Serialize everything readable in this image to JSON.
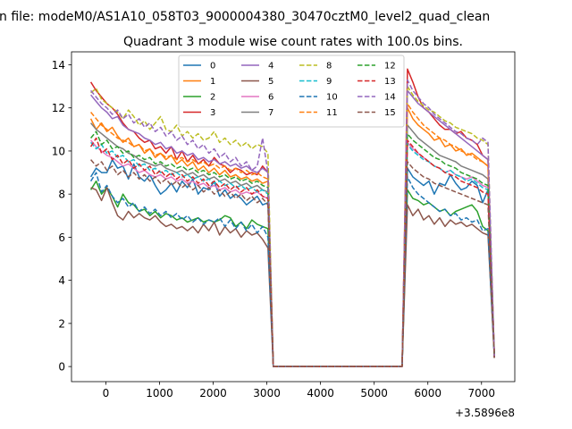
{
  "chart_data": {
    "type": "line",
    "suptitle": "n file: modeM0/AS1A10_058T03_9000004380_30470cztM0_level2_quad_clean",
    "title": "Quadrant 3 module wise count rates with 100.0s bins.",
    "xlabel": "",
    "ylabel": "",
    "x_offset_label": "+3.5896e8",
    "xlim": [
      -640,
      7620
    ],
    "ylim": [
      -0.7,
      14.6
    ],
    "xticks": [
      0,
      1000,
      2000,
      3000,
      4000,
      5000,
      6000,
      7000
    ],
    "yticks": [
      0,
      2,
      4,
      6,
      8,
      10,
      12,
      14
    ],
    "grid": false,
    "legend": {
      "placement": "top-center",
      "columns": 4
    },
    "x": [
      -280,
      -180,
      -80,
      20,
      120,
      220,
      320,
      420,
      520,
      620,
      720,
      820,
      920,
      1020,
      1120,
      1220,
      1320,
      1420,
      1520,
      1620,
      1720,
      1820,
      1920,
      2020,
      2120,
      2220,
      2320,
      2420,
      2520,
      2620,
      2720,
      2820,
      2920,
      3020,
      3120,
      5420,
      5520,
      5620,
      5720,
      5820,
      5920,
      6020,
      6120,
      6220,
      6320,
      6420,
      6520,
      6620,
      6720,
      6820,
      6920,
      7020,
      7120,
      7240
    ],
    "series": [
      {
        "name": "0",
        "color": "#1f77b4",
        "style": "solid",
        "values": [
          8.8,
          9.2,
          9.0,
          9.0,
          9.6,
          9.2,
          9.3,
          8.7,
          9.4,
          8.8,
          8.6,
          8.9,
          8.4,
          8.0,
          8.2,
          8.5,
          8.1,
          8.6,
          8.3,
          8.7,
          8.0,
          8.3,
          8.2,
          8.6,
          7.9,
          8.2,
          7.8,
          8.0,
          7.8,
          7.5,
          7.7,
          7.9,
          7.5,
          7.6,
          0.0,
          0.0,
          0.0,
          9.2,
          8.8,
          8.6,
          8.4,
          8.6,
          8.0,
          8.5,
          8.4,
          8.9,
          8.5,
          8.2,
          8.3,
          8.6,
          8.4,
          7.6,
          8.2,
          0.4
        ]
      },
      {
        "name": "1",
        "color": "#ff7f0e",
        "style": "solid",
        "values": [
          11.5,
          11.0,
          11.3,
          10.9,
          11.1,
          10.7,
          10.4,
          10.6,
          10.2,
          10.3,
          9.9,
          10.1,
          9.7,
          9.9,
          9.6,
          9.8,
          9.4,
          9.6,
          9.3,
          9.5,
          9.1,
          9.3,
          9.0,
          9.2,
          8.9,
          9.1,
          8.8,
          8.9,
          8.7,
          8.8,
          8.6,
          8.7,
          8.5,
          8.6,
          0.0,
          0.0,
          0.0,
          12.0,
          11.5,
          11.2,
          11.0,
          10.8,
          10.5,
          10.6,
          10.2,
          10.3,
          10.0,
          10.1,
          9.8,
          9.9,
          9.7,
          9.5,
          9.3,
          0.4
        ]
      },
      {
        "name": "2",
        "color": "#2ca02c",
        "style": "solid",
        "values": [
          8.2,
          8.6,
          8.0,
          8.3,
          7.9,
          7.4,
          8.0,
          7.6,
          7.5,
          7.2,
          7.3,
          7.0,
          7.2,
          6.9,
          7.1,
          7.0,
          6.8,
          6.9,
          6.7,
          6.8,
          6.9,
          6.7,
          6.8,
          6.7,
          6.8,
          7.0,
          6.9,
          6.5,
          6.7,
          6.4,
          6.8,
          6.6,
          6.5,
          6.4,
          0.0,
          0.0,
          0.0,
          8.2,
          7.8,
          7.7,
          7.5,
          7.6,
          7.4,
          7.2,
          7.3,
          7.0,
          7.2,
          7.3,
          7.4,
          7.5,
          7.2,
          6.5,
          6.3,
          0.4
        ]
      },
      {
        "name": "3",
        "color": "#d62728",
        "style": "solid",
        "values": [
          13.2,
          12.8,
          12.5,
          12.2,
          12.0,
          11.7,
          11.3,
          11.0,
          10.9,
          10.6,
          10.4,
          10.5,
          10.1,
          10.2,
          9.9,
          10.2,
          9.6,
          10.0,
          9.5,
          9.8,
          9.4,
          9.6,
          9.3,
          9.7,
          9.4,
          9.3,
          9.0,
          9.2,
          9.1,
          8.9,
          9.0,
          8.9,
          9.3,
          9.0,
          0.0,
          0.0,
          0.0,
          13.8,
          13.2,
          12.5,
          12.0,
          11.8,
          11.5,
          11.2,
          11.0,
          11.0,
          10.8,
          10.9,
          10.6,
          10.5,
          10.3,
          9.8,
          9.6,
          0.4
        ]
      },
      {
        "name": "4",
        "color": "#9467bd",
        "style": "solid",
        "values": [
          12.6,
          12.3,
          12.0,
          11.8,
          11.5,
          11.6,
          11.2,
          11.0,
          10.9,
          10.8,
          10.6,
          10.5,
          10.3,
          10.4,
          10.1,
          10.2,
          9.9,
          10.0,
          9.8,
          9.9,
          9.6,
          9.7,
          9.5,
          9.6,
          9.4,
          9.5,
          9.3,
          9.4,
          9.2,
          9.3,
          9.1,
          9.0,
          9.2,
          9.0,
          0.0,
          0.0,
          0.0,
          12.8,
          12.5,
          12.2,
          12.0,
          11.8,
          11.6,
          11.4,
          11.2,
          11.0,
          10.8,
          10.6,
          10.4,
          10.2,
          10.0,
          9.8,
          9.6,
          0.4
        ]
      },
      {
        "name": "5",
        "color": "#8c564b",
        "style": "solid",
        "values": [
          8.3,
          8.2,
          7.7,
          8.3,
          7.6,
          7.0,
          6.8,
          7.2,
          6.9,
          7.1,
          6.9,
          6.8,
          7.0,
          6.7,
          6.5,
          6.6,
          6.4,
          6.5,
          6.3,
          6.5,
          6.2,
          6.6,
          6.3,
          6.7,
          6.1,
          6.5,
          6.2,
          6.4,
          6.0,
          6.3,
          6.1,
          6.2,
          5.9,
          5.5,
          0.0,
          0.0,
          0.0,
          7.5,
          7.0,
          7.3,
          6.8,
          7.0,
          6.6,
          6.9,
          6.5,
          6.8,
          6.6,
          6.7,
          6.5,
          6.6,
          6.4,
          6.2,
          6.1,
          0.4
        ]
      },
      {
        "name": "6",
        "color": "#e377c2",
        "style": "solid",
        "values": [
          10.5,
          10.2,
          10.0,
          9.8,
          9.7,
          9.5,
          9.3,
          9.4,
          9.2,
          9.0,
          9.1,
          8.9,
          8.8,
          8.9,
          8.7,
          8.8,
          8.6,
          8.7,
          8.5,
          8.6,
          8.4,
          8.5,
          8.3,
          8.4,
          8.2,
          8.3,
          8.1,
          8.2,
          8.0,
          8.1,
          8.0,
          8.1,
          7.9,
          7.8,
          0.0,
          0.0,
          0.0,
          10.4,
          10.1,
          9.9,
          9.7,
          9.5,
          9.3,
          9.2,
          9.0,
          9.1,
          8.9,
          8.8,
          8.7,
          8.8,
          8.6,
          8.4,
          8.3,
          0.4
        ]
      },
      {
        "name": "7",
        "color": "#7f7f7f",
        "style": "solid",
        "values": [
          11.3,
          11.0,
          10.8,
          10.6,
          10.4,
          10.2,
          10.1,
          9.9,
          9.8,
          9.6,
          9.5,
          9.4,
          9.3,
          9.4,
          9.2,
          9.1,
          9.0,
          9.1,
          8.9,
          9.0,
          8.8,
          8.9,
          8.7,
          8.8,
          8.6,
          8.7,
          8.5,
          8.6,
          8.4,
          8.5,
          8.3,
          8.4,
          8.2,
          8.1,
          0.0,
          0.0,
          0.0,
          11.2,
          10.9,
          10.6,
          10.4,
          10.2,
          10.0,
          9.8,
          9.7,
          9.6,
          9.5,
          9.3,
          9.2,
          9.1,
          9.0,
          8.9,
          8.7,
          0.4
        ]
      },
      {
        "name": "8",
        "color": "#bcbd22",
        "style": "dashed",
        "values": [
          12.7,
          12.9,
          12.4,
          12.2,
          12.0,
          11.8,
          11.5,
          11.9,
          11.6,
          11.2,
          11.4,
          11.0,
          11.3,
          11.6,
          11.0,
          10.9,
          11.2,
          10.7,
          10.9,
          10.6,
          10.8,
          10.5,
          10.6,
          10.9,
          10.4,
          10.6,
          10.3,
          10.5,
          10.2,
          10.4,
          10.1,
          10.3,
          10.2,
          9.9,
          0.0,
          0.0,
          0.0,
          13.0,
          12.6,
          12.3,
          12.1,
          11.9,
          11.8,
          11.6,
          11.4,
          11.3,
          11.1,
          11.0,
          10.9,
          10.8,
          10.6,
          10.5,
          10.3,
          0.4
        ]
      },
      {
        "name": "9",
        "color": "#17becf",
        "style": "dashed",
        "values": [
          10.4,
          10.1,
          10.3,
          9.9,
          10.0,
          9.7,
          9.8,
          9.5,
          9.6,
          9.3,
          9.4,
          9.1,
          9.2,
          9.0,
          9.1,
          8.9,
          9.0,
          8.8,
          8.9,
          8.7,
          8.8,
          8.6,
          8.7,
          8.5,
          8.6,
          8.4,
          8.5,
          8.3,
          8.4,
          8.2,
          8.3,
          8.1,
          8.2,
          8.0,
          0.0,
          0.0,
          0.0,
          10.3,
          10.0,
          9.8,
          9.6,
          9.5,
          9.3,
          9.2,
          9.0,
          9.1,
          8.9,
          8.8,
          8.6,
          8.7,
          8.5,
          8.3,
          8.2,
          0.4
        ]
      },
      {
        "name": "10",
        "color": "#1f77b4",
        "style": "dashed",
        "values": [
          8.6,
          9.0,
          8.1,
          8.4,
          7.9,
          7.6,
          7.8,
          7.4,
          7.6,
          7.2,
          7.4,
          7.1,
          7.3,
          7.0,
          7.2,
          6.9,
          7.1,
          6.8,
          7.0,
          6.7,
          6.9,
          6.6,
          6.8,
          6.7,
          6.9,
          6.5,
          6.8,
          6.4,
          6.7,
          6.3,
          6.6,
          6.2,
          6.5,
          6.0,
          0.0,
          0.0,
          0.0,
          8.8,
          8.3,
          8.0,
          7.8,
          7.6,
          7.4,
          7.2,
          7.3,
          7.0,
          7.1,
          6.8,
          6.9,
          6.7,
          6.8,
          6.3,
          6.4,
          0.4
        ]
      },
      {
        "name": "11",
        "color": "#ff7f0e",
        "style": "dashed",
        "values": [
          11.8,
          11.5,
          11.2,
          11.0,
          10.8,
          10.6,
          10.5,
          10.4,
          10.2,
          10.3,
          10.0,
          10.1,
          9.8,
          9.9,
          9.7,
          9.8,
          9.6,
          9.7,
          9.5,
          9.6,
          9.4,
          9.5,
          9.3,
          9.4,
          9.2,
          9.3,
          9.1,
          9.2,
          9.0,
          9.1,
          8.9,
          9.0,
          8.8,
          8.7,
          0.0,
          0.0,
          0.0,
          12.2,
          11.8,
          11.5,
          11.2,
          11.0,
          10.8,
          10.6,
          10.5,
          10.3,
          10.2,
          10.0,
          9.9,
          9.8,
          9.6,
          9.5,
          9.3,
          0.4
        ]
      },
      {
        "name": "12",
        "color": "#2ca02c",
        "style": "dashed",
        "values": [
          10.6,
          10.9,
          10.3,
          10.5,
          10.1,
          10.2,
          9.9,
          10.0,
          9.7,
          9.8,
          9.6,
          9.7,
          9.4,
          9.5,
          9.3,
          9.4,
          9.2,
          9.3,
          9.1,
          9.2,
          9.0,
          9.1,
          8.9,
          9.0,
          8.8,
          8.9,
          8.7,
          8.8,
          8.6,
          8.7,
          8.5,
          8.6,
          8.4,
          8.3,
          0.0,
          0.0,
          0.0,
          10.8,
          10.5,
          10.3,
          10.1,
          9.9,
          9.7,
          9.6,
          9.4,
          9.3,
          9.2,
          9.0,
          8.9,
          8.8,
          8.7,
          8.5,
          8.4,
          0.4
        ]
      },
      {
        "name": "13",
        "color": "#d62728",
        "style": "dashed",
        "values": [
          10.2,
          10.6,
          9.9,
          10.1,
          9.6,
          9.8,
          9.4,
          9.6,
          9.2,
          9.4,
          9.1,
          9.3,
          8.9,
          9.1,
          8.8,
          9.0,
          8.7,
          8.9,
          8.6,
          8.8,
          8.5,
          8.7,
          8.4,
          8.6,
          8.3,
          8.5,
          8.2,
          8.4,
          8.1,
          8.3,
          8.0,
          8.2,
          7.9,
          7.8,
          0.0,
          0.0,
          0.0,
          10.5,
          10.2,
          9.9,
          9.7,
          9.5,
          9.3,
          9.2,
          9.0,
          8.9,
          8.8,
          8.6,
          8.5,
          8.4,
          8.3,
          8.1,
          8.0,
          0.4
        ]
      },
      {
        "name": "14",
        "color": "#9467bd",
        "style": "dashed",
        "values": [
          12.8,
          12.5,
          12.2,
          12.0,
          11.7,
          11.9,
          11.5,
          11.7,
          11.3,
          11.5,
          11.1,
          11.3,
          10.9,
          11.1,
          10.7,
          10.9,
          10.5,
          10.7,
          10.3,
          10.5,
          10.1,
          10.3,
          9.9,
          10.1,
          9.7,
          9.9,
          9.5,
          9.7,
          9.3,
          9.5,
          9.1,
          9.3,
          10.6,
          9.0,
          0.0,
          0.0,
          0.0,
          13.3,
          12.8,
          12.5,
          12.2,
          12.0,
          11.7,
          11.5,
          11.3,
          11.1,
          10.9,
          10.8,
          10.6,
          10.5,
          10.3,
          10.6,
          10.4,
          0.4
        ]
      },
      {
        "name": "15",
        "color": "#8c564b",
        "style": "dashed",
        "values": [
          9.6,
          9.3,
          9.5,
          9.1,
          9.3,
          8.9,
          9.1,
          8.8,
          9.0,
          8.7,
          8.9,
          8.6,
          8.8,
          8.5,
          8.7,
          8.4,
          8.6,
          8.3,
          8.5,
          8.2,
          8.4,
          8.1,
          8.3,
          8.0,
          8.2,
          7.9,
          8.1,
          7.8,
          8.0,
          7.7,
          7.9,
          7.6,
          7.8,
          7.5,
          0.0,
          0.0,
          0.0,
          9.5,
          9.2,
          9.0,
          8.8,
          8.7,
          8.5,
          8.4,
          8.3,
          8.2,
          8.1,
          8.0,
          7.9,
          7.8,
          7.7,
          7.6,
          7.5,
          0.4
        ]
      }
    ]
  }
}
